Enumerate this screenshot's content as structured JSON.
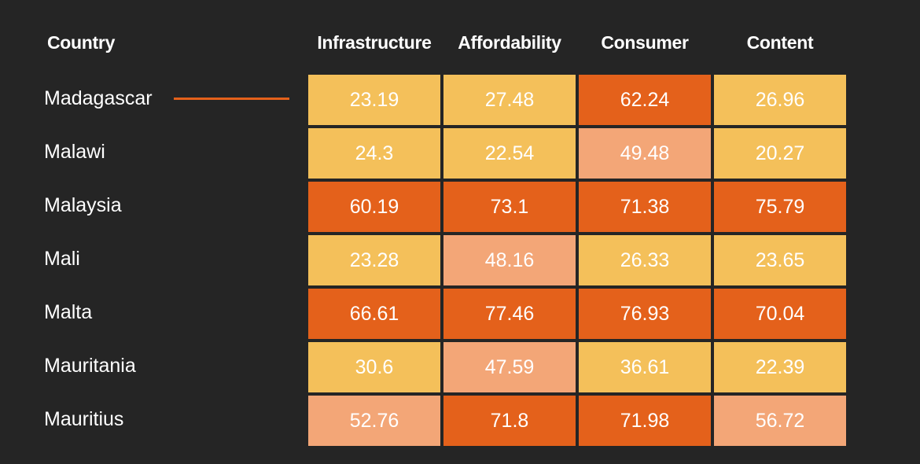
{
  "chart_data": {
    "type": "heatmap",
    "row_header": "Country",
    "columns": [
      "Infrastructure",
      "Affordability",
      "Consumer",
      "Content"
    ],
    "rows": [
      "Madagascar",
      "Malawi",
      "Malaysia",
      "Mali",
      "Malta",
      "Mauritania",
      "Mauritius"
    ],
    "values": [
      [
        "23.19",
        "27.48",
        "62.24",
        "26.96"
      ],
      [
        "24.3",
        "22.54",
        "49.48",
        "20.27"
      ],
      [
        "60.19",
        "73.1",
        "71.38",
        "75.79"
      ],
      [
        "23.28",
        "48.16",
        "26.33",
        "23.65"
      ],
      [
        "66.61",
        "77.46",
        "76.93",
        "70.04"
      ],
      [
        "30.6",
        "47.59",
        "36.61",
        "22.39"
      ],
      [
        "52.76",
        "71.8",
        "71.98",
        "56.72"
      ]
    ],
    "highlighted_row": "Madagascar",
    "color_scale": {
      "low": "#f4c05a",
      "mid": "#f3a677",
      "high": "#e4611b"
    },
    "thresholds": [
      40,
      60
    ],
    "colors": {
      "background": "#252525",
      "text": "#ffffff",
      "highlight_marker": "#e4611b"
    }
  }
}
